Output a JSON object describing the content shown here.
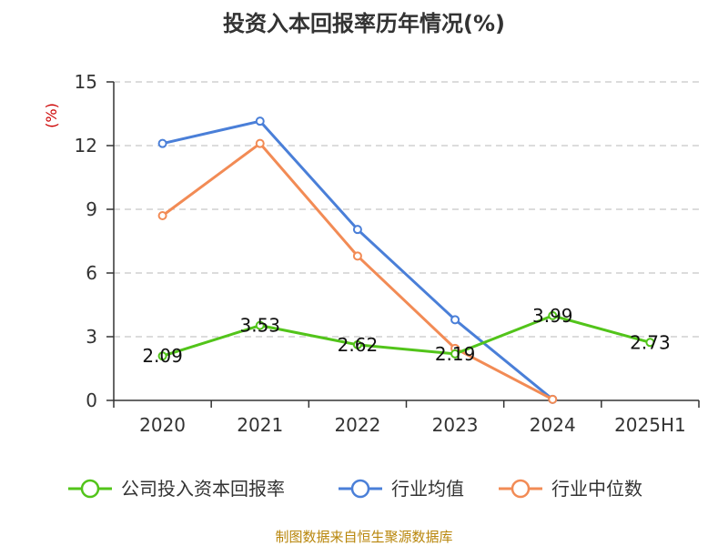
{
  "chart_data": {
    "type": "line",
    "title": "投资入本回报率历年情况(%)",
    "ylabel": "(%)",
    "xlabel": "",
    "categories": [
      "2020",
      "2021",
      "2022",
      "2023",
      "2024",
      "2025H1"
    ],
    "ylim": [
      0,
      15
    ],
    "yticks": [
      0,
      3,
      6,
      9,
      12,
      15
    ],
    "grid": "horizontal-dashed",
    "legend_position": "bottom",
    "series": [
      {
        "name": "公司投入资本回报率",
        "color": "#52c41a",
        "values": [
          2.09,
          3.53,
          2.62,
          2.19,
          3.99,
          2.73
        ],
        "labels": [
          "2.09",
          "3.53",
          "2.62",
          "2.19",
          "3.99",
          "2.73"
        ]
      },
      {
        "name": "行业均值",
        "color": "#4a7fd8",
        "values": [
          12.1,
          13.15,
          8.05,
          3.8,
          0.05,
          null
        ]
      },
      {
        "name": "行业中位数",
        "color": "#f28b55",
        "values": [
          8.7,
          12.1,
          6.8,
          2.45,
          0.05,
          null
        ]
      }
    ],
    "source": "制图数据来自恒生聚源数据库"
  }
}
